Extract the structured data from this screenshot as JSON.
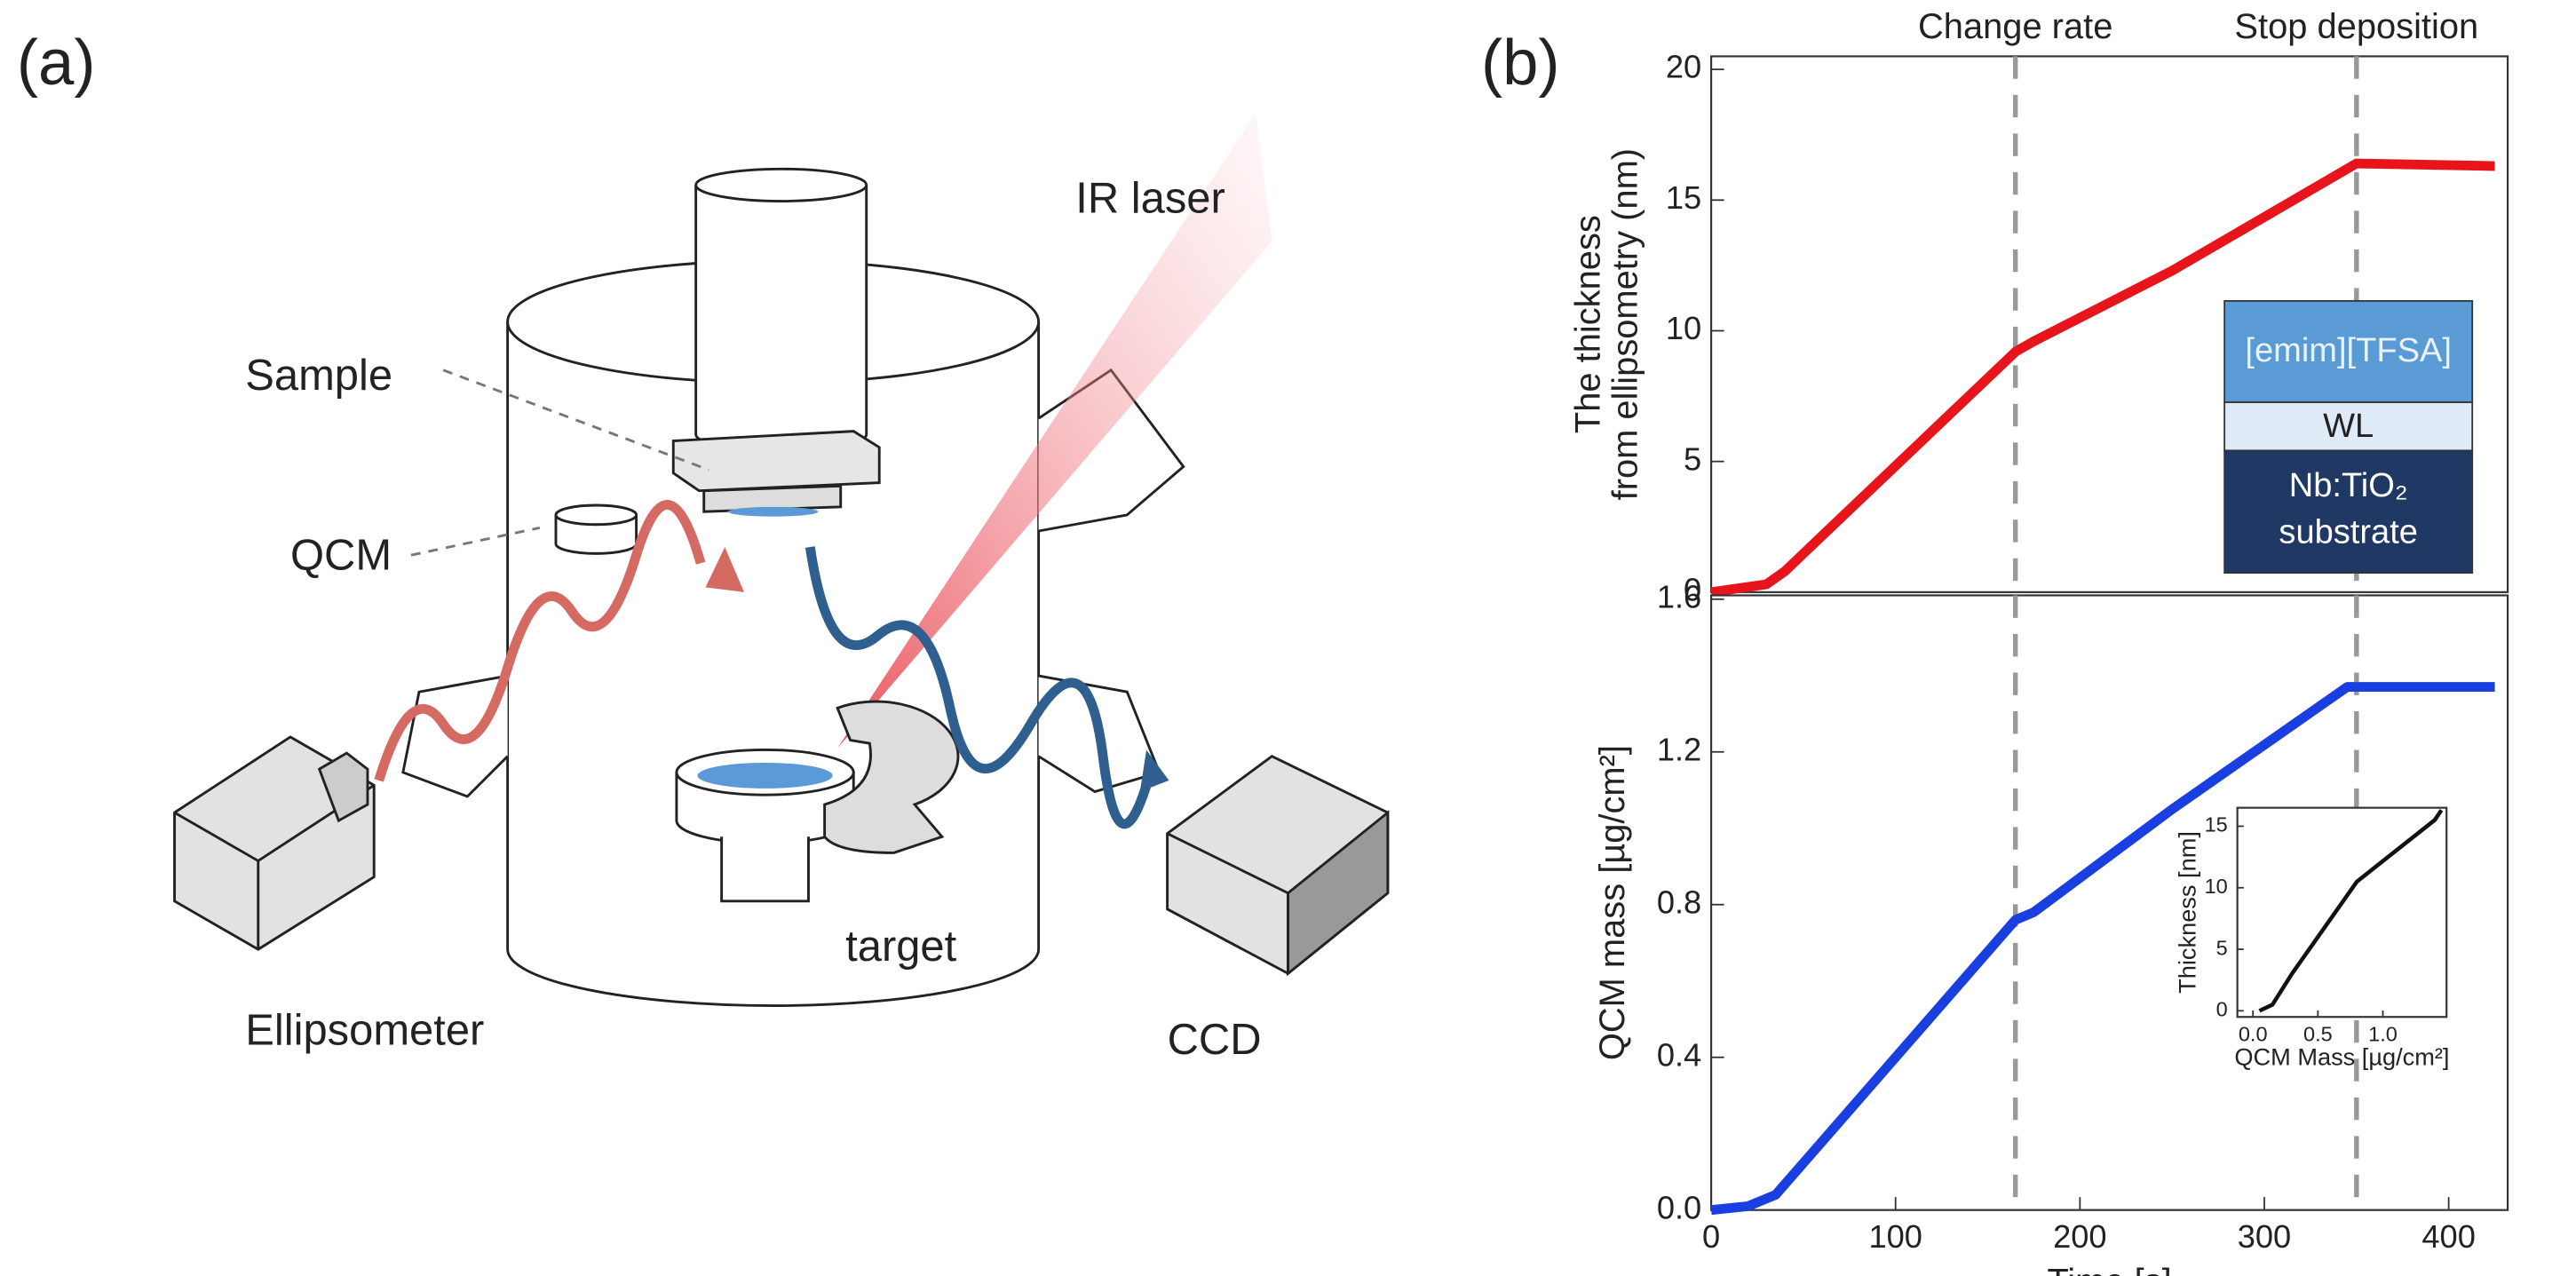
{
  "diagram": {
    "panel_a": "(a)",
    "panel_b": "(b)",
    "sample": "Sample",
    "qcm": "QCM",
    "ir_laser": "IR laser",
    "target": "target",
    "ellipsometer": "Ellipsometer",
    "ccd": "CCD",
    "layers": {
      "top": "[emim][TFSA]",
      "middle": "WL",
      "bottom": [
        "Nb:TiO₂",
        "substrate"
      ]
    }
  },
  "chart_data": [
    {
      "type": "line",
      "ylabel": [
        "The thickness",
        "from ellipsometry (nm)"
      ],
      "x": [
        0,
        30,
        40,
        165,
        175,
        250,
        350,
        425
      ],
      "series": [
        {
          "name": "thickness",
          "color": "#e8141b",
          "values": [
            0,
            0.3,
            0.8,
            9.2,
            9.6,
            12.3,
            16.4,
            16.3
          ]
        }
      ],
      "xlim": [
        0,
        432
      ],
      "ylim": [
        0,
        20.5
      ],
      "yticks": [
        0,
        5,
        10,
        15,
        20
      ],
      "vlines": [
        {
          "x": 165,
          "label": "Change rate"
        },
        {
          "x": 350,
          "label": "Stop deposition"
        }
      ]
    },
    {
      "type": "line",
      "ylabel": [
        "QCM mass [µg/cm²]"
      ],
      "xlabel": "Time [s]",
      "x": [
        0,
        20,
        35,
        165,
        175,
        250,
        345,
        425
      ],
      "series": [
        {
          "name": "QCM mass",
          "color": "#1a3fe0",
          "values": [
            0,
            0.01,
            0.04,
            0.76,
            0.78,
            1.05,
            1.37,
            1.37
          ]
        }
      ],
      "xlim": [
        0,
        432
      ],
      "ylim": [
        0,
        1.61
      ],
      "xticks": [
        0,
        100,
        200,
        300,
        400
      ],
      "yticks": [
        {
          "value": 0,
          "label": "0.0"
        },
        0.4,
        0.8,
        1.2,
        1.6
      ],
      "vlines": [
        165,
        350
      ]
    },
    {
      "type": "line",
      "ylabel": [
        "Thickness [nm]"
      ],
      "xlabel": "QCM Mass [µg/cm²]",
      "x": [
        0.05,
        0.15,
        0.3,
        0.8,
        1.4,
        1.45
      ],
      "series": [
        {
          "name": "inset",
          "color": "#111111",
          "values": [
            0,
            0.5,
            3,
            10.5,
            15.5,
            16.3
          ]
        }
      ],
      "xlim": [
        -0.12,
        1.49
      ],
      "ylim": [
        -0.5,
        16.5
      ],
      "xticks": [
        {
          "value": 0,
          "label": "0.0"
        },
        0.5,
        {
          "value": 1,
          "label": "1.0"
        }
      ],
      "yticks": [
        0,
        5,
        10,
        15
      ]
    }
  ]
}
